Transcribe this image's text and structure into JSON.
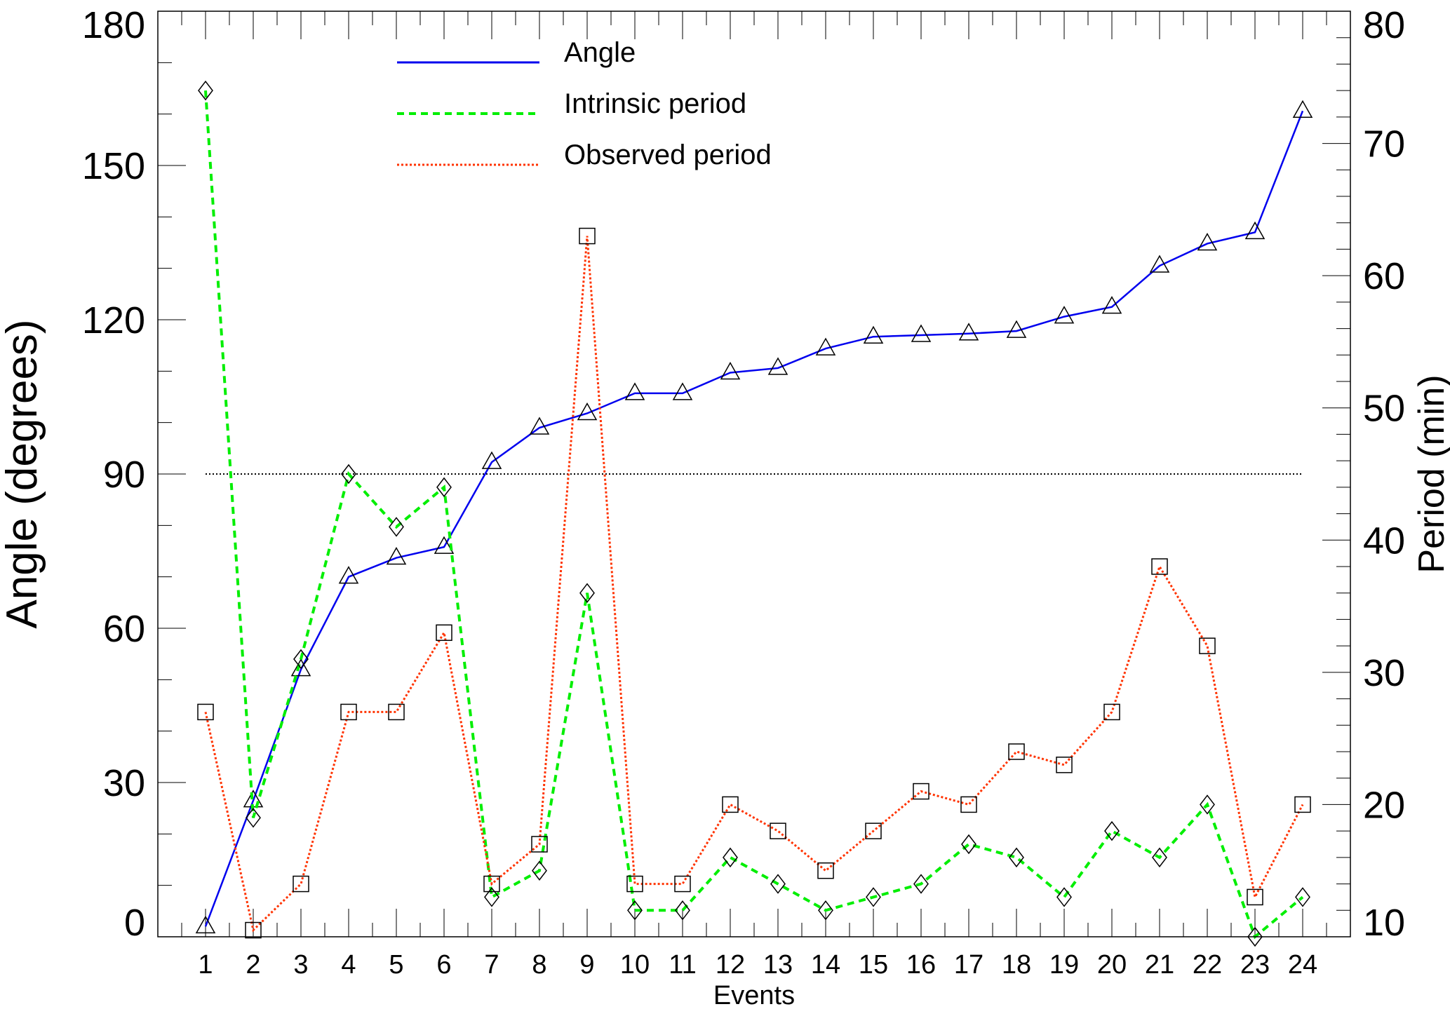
{
  "chart_data": {
    "type": "line",
    "title": "",
    "xlabel": "Events",
    "ylabel": "Angle (degrees)",
    "y2label": "Period (min)",
    "xlim": [
      0,
      25
    ],
    "ylim": [
      0,
      180
    ],
    "y2lim": [
      10,
      80
    ],
    "x": [
      1,
      2,
      3,
      4,
      5,
      6,
      7,
      8,
      9,
      10,
      11,
      12,
      13,
      14,
      15,
      16,
      17,
      18,
      19,
      20,
      21,
      22,
      23,
      24
    ],
    "xticks": [
      "1",
      "2",
      "3",
      "4",
      "5",
      "6",
      "7",
      "8",
      "9",
      "10",
      "11",
      "12",
      "13",
      "14",
      "15",
      "16",
      "17",
      "18",
      "19",
      "20",
      "21",
      "22",
      "23",
      "24"
    ],
    "yticks": [
      0,
      30,
      60,
      90,
      120,
      150,
      180
    ],
    "y2ticks": [
      10,
      20,
      30,
      40,
      50,
      60,
      70,
      80
    ],
    "reference_line": {
      "y": 90,
      "x_from": 1,
      "x_to": 24,
      "style": "dotted",
      "color": "#000000"
    },
    "legend_position": "top-center",
    "series": [
      {
        "name": "Angle",
        "axis": "left",
        "color": "#0000ee",
        "style": "solid",
        "marker": "triangle",
        "values": [
          2,
          26.5,
          52,
          70,
          73.7,
          75.8,
          92.3,
          99,
          101.8,
          105.7,
          105.7,
          109.7,
          110.6,
          114.4,
          116.7,
          117,
          117.3,
          117.8,
          120.6,
          122.5,
          130.5,
          134.8,
          137,
          160.6
        ]
      },
      {
        "name": "Intrinsic period",
        "axis": "right",
        "color": "#00ee00",
        "style": "dashed",
        "marker": "diamond",
        "values": [
          74,
          19,
          31,
          45,
          41,
          44,
          13,
          15,
          36,
          12,
          12,
          16,
          14,
          12,
          13,
          14,
          17,
          16,
          13,
          18,
          16,
          20,
          10,
          13
        ]
      },
      {
        "name": "Observed period",
        "axis": "right",
        "color": "#ff3300",
        "style": "dotted",
        "marker": "square",
        "values": [
          27,
          10.5,
          14,
          27,
          27,
          33,
          14,
          17,
          63,
          14,
          14,
          20,
          18,
          15,
          18,
          21,
          20,
          24,
          23,
          27,
          38,
          32,
          13,
          20
        ]
      }
    ]
  }
}
